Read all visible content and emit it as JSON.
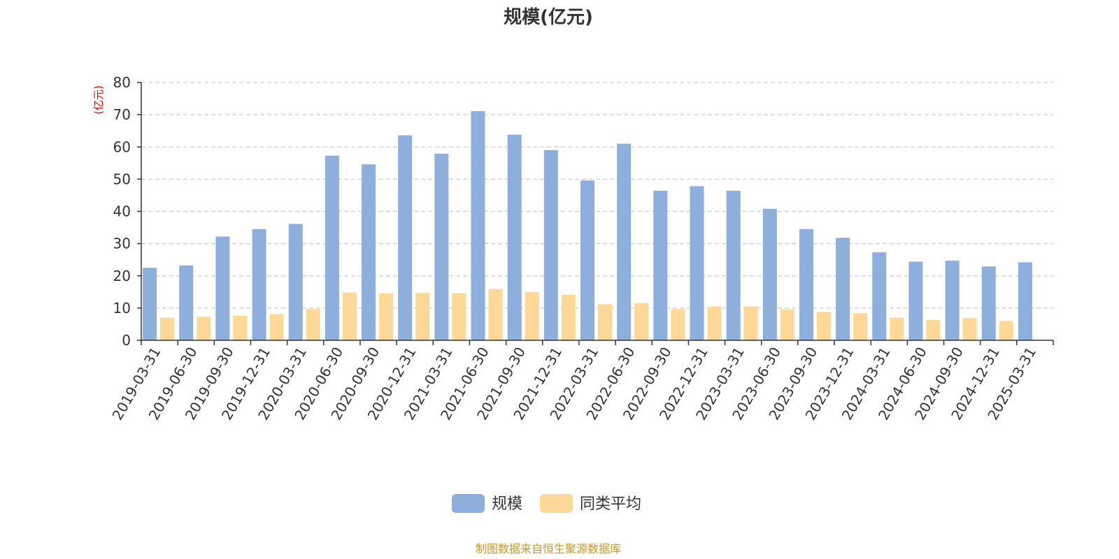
{
  "chart_data": {
    "type": "bar",
    "title": "规模(亿元)",
    "ylabel": "(亿元)",
    "ylim": [
      0,
      80
    ],
    "yticks": [
      0,
      10,
      20,
      30,
      40,
      50,
      60,
      70,
      80
    ],
    "grid": true,
    "legend_position": "bottom",
    "categories": [
      "2019-03-31",
      "2019-06-30",
      "2019-09-30",
      "2019-12-31",
      "2020-03-31",
      "2020-06-30",
      "2020-09-30",
      "2020-12-31",
      "2021-03-31",
      "2021-06-30",
      "2021-09-30",
      "2021-12-31",
      "2022-03-31",
      "2022-06-30",
      "2022-09-30",
      "2022-12-31",
      "2023-03-31",
      "2023-06-30",
      "2023-09-30",
      "2023-12-31",
      "2024-03-31",
      "2024-06-30",
      "2024-09-30",
      "2024-12-31",
      "2025-03-31"
    ],
    "series": [
      {
        "name": "规模",
        "color": "#8eaedb",
        "values": [
          22.5,
          23.2,
          32.2,
          34.5,
          36.1,
          57.3,
          54.6,
          63.6,
          57.9,
          71.1,
          63.8,
          59.0,
          49.6,
          61.0,
          46.4,
          47.8,
          46.4,
          40.8,
          34.5,
          31.8,
          27.3,
          24.4,
          24.7,
          22.9,
          24.2
        ]
      },
      {
        "name": "同类平均",
        "color": "#fdd898",
        "values": [
          7.0,
          7.3,
          7.6,
          8.1,
          9.7,
          14.8,
          14.6,
          14.7,
          14.6,
          15.9,
          14.9,
          14.1,
          11.2,
          11.5,
          9.7,
          10.5,
          10.5,
          9.6,
          8.8,
          8.4,
          7.0,
          6.3,
          6.9,
          6.0,
          null
        ]
      }
    ]
  },
  "source_note": "制图数据来自恒生聚源数据库",
  "colors": {
    "axis": "#333333",
    "grid": "#cccccc",
    "unit": "#e00000",
    "source": "#c8962a"
  }
}
